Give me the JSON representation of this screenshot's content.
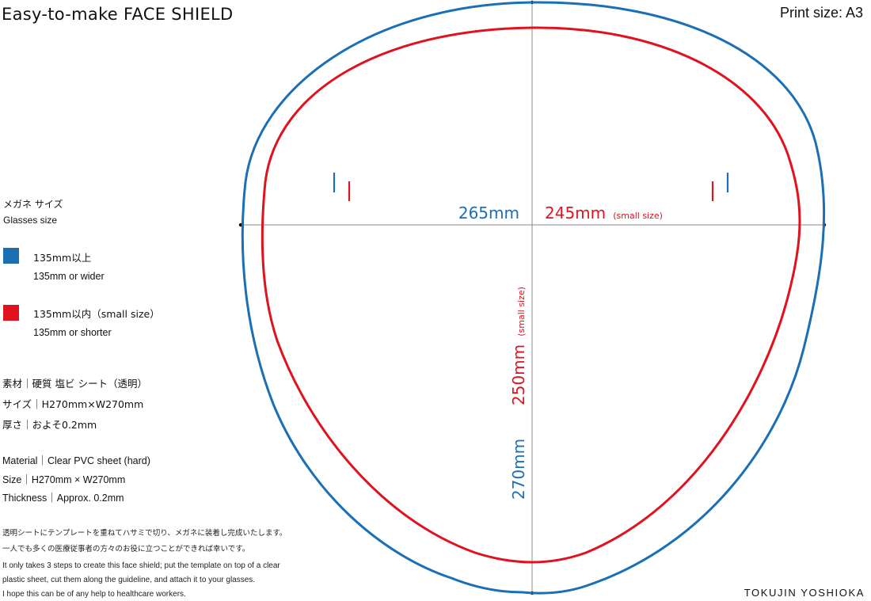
{
  "header": {
    "title": "Easy-to-make  FACE SHIELD",
    "print_size": "Print size: A3"
  },
  "legend": {
    "heading_jp": "メガネ サイズ",
    "heading_en": "Glasses size",
    "items": [
      {
        "label_main": "135mm以上",
        "label_sub": "135mm or wider",
        "color": "#1a6fb5"
      },
      {
        "label_main": "135mm以内（small size）",
        "label_sub": "135mm or shorter",
        "color": "#e0121e"
      }
    ]
  },
  "specs_jp": [
    "素材｜硬質 塩ビ シート（透明）",
    "サイズ｜H270mm×W270mm",
    "厚さ｜およそ0.2mm"
  ],
  "specs_en": [
    "Material｜Clear PVC sheet (hard)",
    "Size｜H270mm × W270mm",
    "Thickness｜Approx. 0.2mm"
  ],
  "notes_jp": [
    "透明シートにテンプレートを重ねてハサミで切り、メガネに装着し完成いたします。",
    "一人でも多くの医療従事者の方々のお役に立つことができれば幸いです。"
  ],
  "notes_en": [
    "It only takes 3 steps to create this face shield; put the template on top of a clear",
    "plastic sheet, cut them along the guideline, and attach it to your glasses.",
    "I hope this can be of any help to healthcare workers."
  ],
  "dimensions": {
    "width_large": "265mm",
    "width_small": "245mm",
    "width_small_note": "(small size)",
    "height_large": "270mm",
    "height_small": "250mm",
    "height_small_note": "(small size)"
  },
  "colors": {
    "large_outline": "#1a6fb5",
    "small_outline": "#e0121e",
    "guide_line": "#888888"
  },
  "credit": "TOKUJIN YOSHIOKA"
}
